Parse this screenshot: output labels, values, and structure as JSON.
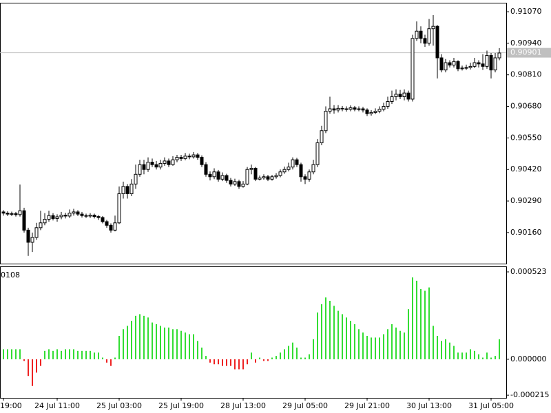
{
  "chart_data": [
    {
      "type": "candlestick",
      "color": "#000000",
      "up_fill": "#ffffff",
      "down_fill": "#000000",
      "ylim": [
        0.90032,
        0.91107
      ],
      "yticks": [
        {
          "value": 0.9107,
          "label": "0.91070"
        },
        {
          "value": 0.9094,
          "label": "0.90940"
        },
        {
          "value": 0.9081,
          "label": "0.90810"
        },
        {
          "value": 0.9068,
          "label": "0.90680"
        },
        {
          "value": 0.9055,
          "label": "0.90550"
        },
        {
          "value": 0.9042,
          "label": "0.90420"
        },
        {
          "value": 0.9029,
          "label": "0.90290"
        },
        {
          "value": 0.9016,
          "label": "0.90160"
        }
      ],
      "current_price": {
        "value": 0.90901,
        "label": "0.90901",
        "color": "#c0c0c0"
      },
      "open": [
        0.90245,
        0.9024,
        0.90236,
        0.90238,
        0.90234,
        0.9025,
        0.9017,
        0.9012,
        0.9014,
        0.9018,
        0.902,
        0.90215,
        0.9023,
        0.90218,
        0.90225,
        0.90232,
        0.90228,
        0.9024,
        0.90245,
        0.90236,
        0.9023,
        0.90228,
        0.90232,
        0.90226,
        0.90222,
        0.90205,
        0.9019,
        0.9017,
        0.902,
        0.9032,
        0.9035,
        0.9032,
        0.9036,
        0.904,
        0.9044,
        0.9042,
        0.9045,
        0.9044,
        0.9043,
        0.90445,
        0.90455,
        0.9044,
        0.9046,
        0.9047,
        0.90465,
        0.90475,
        0.90472,
        0.9048,
        0.9047,
        0.9044,
        0.904,
        0.9039,
        0.9041,
        0.9038,
        0.90395,
        0.90375,
        0.9036,
        0.9037,
        0.9035,
        0.9036,
        0.9042,
        0.90425,
        0.9038,
        0.90385,
        0.9039,
        0.9038,
        0.9039,
        0.90395,
        0.9041,
        0.9042,
        0.9043,
        0.9046,
        0.9044,
        0.9039,
        0.9038,
        0.9041,
        0.9044,
        0.9053,
        0.9058,
        0.9066,
        0.9067,
        0.90665,
        0.90672,
        0.9067,
        0.90668,
        0.90674,
        0.90668,
        0.9067,
        0.90665,
        0.9065,
        0.90655,
        0.9066,
        0.90668,
        0.9068,
        0.907,
        0.9072,
        0.9073,
        0.9072,
        0.90735,
        0.9071,
        0.9096,
        0.9099,
        0.9096,
        0.9094,
        0.91,
        0.9101,
        0.9088,
        0.9083,
        0.9086,
        0.9085,
        0.90865,
        0.90835,
        0.90838,
        0.9084,
        0.90845,
        0.9086,
        0.90855,
        0.90845,
        0.9089,
        0.9083,
        0.9088
      ],
      "high": [
        0.90252,
        0.90248,
        0.90246,
        0.90245,
        0.90358,
        0.90262,
        0.9018,
        0.9016,
        0.902,
        0.9025,
        0.9024,
        0.9025,
        0.9024,
        0.90235,
        0.90245,
        0.90242,
        0.90255,
        0.90258,
        0.90252,
        0.90245,
        0.90238,
        0.9024,
        0.90238,
        0.90232,
        0.90228,
        0.90212,
        0.90198,
        0.9023,
        0.9035,
        0.9037,
        0.9036,
        0.9038,
        0.9044,
        0.9046,
        0.9046,
        0.9047,
        0.90465,
        0.90455,
        0.9046,
        0.9047,
        0.90465,
        0.90475,
        0.9048,
        0.9048,
        0.90488,
        0.90485,
        0.90492,
        0.90488,
        0.90478,
        0.9045,
        0.90412,
        0.90425,
        0.90418,
        0.90408,
        0.90402,
        0.90385,
        0.90382,
        0.90378,
        0.90372,
        0.9043,
        0.9044,
        0.9043,
        0.90395,
        0.904,
        0.90398,
        0.90398,
        0.90405,
        0.9042,
        0.90432,
        0.90448,
        0.9047,
        0.90468,
        0.90448,
        0.904,
        0.9042,
        0.9046,
        0.90545,
        0.906,
        0.9068,
        0.9072,
        0.90685,
        0.90685,
        0.90682,
        0.9068,
        0.90684,
        0.90682,
        0.9068,
        0.90678,
        0.90672,
        0.90665,
        0.90672,
        0.9068,
        0.90695,
        0.9072,
        0.90745,
        0.9075,
        0.90748,
        0.9075,
        0.90745,
        0.90975,
        0.9103,
        0.9101,
        0.90975,
        0.9104,
        0.91056,
        0.91015,
        0.90895,
        0.90875,
        0.9087,
        0.9088,
        0.9087,
        0.90848,
        0.90852,
        0.9086,
        0.9088,
        0.9087,
        0.90895,
        0.9091,
        0.909,
        0.909,
        0.9092
      ],
      "low": [
        0.9023,
        0.90228,
        0.90228,
        0.90226,
        0.90226,
        0.9016,
        0.90064,
        0.9008,
        0.9013,
        0.9017,
        0.9019,
        0.90205,
        0.9021,
        0.90205,
        0.90215,
        0.90218,
        0.9022,
        0.9023,
        0.90228,
        0.90222,
        0.9022,
        0.9022,
        0.90218,
        0.90212,
        0.90198,
        0.9018,
        0.9016,
        0.90165,
        0.90195,
        0.903,
        0.903,
        0.9031,
        0.9034,
        0.9039,
        0.904,
        0.9041,
        0.9043,
        0.9042,
        0.9042,
        0.90435,
        0.9043,
        0.90435,
        0.9045,
        0.90455,
        0.90458,
        0.90462,
        0.90465,
        0.9046,
        0.9043,
        0.9039,
        0.90375,
        0.9038,
        0.9037,
        0.90372,
        0.90365,
        0.9035,
        0.90352,
        0.9034,
        0.90345,
        0.90355,
        0.904,
        0.90372,
        0.90375,
        0.90378,
        0.90372,
        0.90374,
        0.90382,
        0.90388,
        0.90402,
        0.90412,
        0.9042,
        0.9043,
        0.9037,
        0.9036,
        0.9037,
        0.904,
        0.9043,
        0.9052,
        0.9057,
        0.9065,
        0.9065,
        0.90655,
        0.9066,
        0.90658,
        0.9066,
        0.9066,
        0.9066,
        0.90655,
        0.9064,
        0.90642,
        0.90648,
        0.90652,
        0.9066,
        0.9067,
        0.9069,
        0.90705,
        0.9071,
        0.90705,
        0.907,
        0.907,
        0.9095,
        0.9094,
        0.90925,
        0.9093,
        0.9093,
        0.90795,
        0.9082,
        0.9082,
        0.9084,
        0.9084,
        0.90825,
        0.90828,
        0.9083,
        0.90832,
        0.90838,
        0.9084,
        0.9083,
        0.90835,
        0.90795,
        0.9082,
        0.9087
      ],
      "close": [
        0.9024,
        0.90236,
        0.90238,
        0.90234,
        0.9025,
        0.9017,
        0.9012,
        0.9014,
        0.9018,
        0.902,
        0.90215,
        0.9023,
        0.90218,
        0.90225,
        0.90232,
        0.90228,
        0.9024,
        0.90245,
        0.90236,
        0.9023,
        0.90228,
        0.90232,
        0.90226,
        0.90222,
        0.90205,
        0.9019,
        0.9017,
        0.902,
        0.9032,
        0.9035,
        0.9032,
        0.9036,
        0.904,
        0.9044,
        0.9042,
        0.9045,
        0.9044,
        0.9043,
        0.90445,
        0.90455,
        0.9044,
        0.9046,
        0.9047,
        0.90465,
        0.90475,
        0.90472,
        0.9048,
        0.9047,
        0.9044,
        0.904,
        0.9039,
        0.9041,
        0.9038,
        0.90395,
        0.90375,
        0.9036,
        0.9037,
        0.9035,
        0.9036,
        0.9042,
        0.90425,
        0.9038,
        0.90385,
        0.9039,
        0.9038,
        0.9039,
        0.90395,
        0.9041,
        0.9042,
        0.9043,
        0.9046,
        0.9044,
        0.9039,
        0.9038,
        0.9041,
        0.9044,
        0.9053,
        0.9058,
        0.9066,
        0.9067,
        0.90665,
        0.90672,
        0.9067,
        0.90668,
        0.90674,
        0.90668,
        0.9067,
        0.90665,
        0.9065,
        0.90655,
        0.9066,
        0.90668,
        0.9068,
        0.907,
        0.9072,
        0.9073,
        0.9072,
        0.90735,
        0.9071,
        0.9096,
        0.9099,
        0.9096,
        0.9094,
        0.91,
        0.9101,
        0.9088,
        0.9083,
        0.9086,
        0.9085,
        0.90865,
        0.90835,
        0.90838,
        0.9084,
        0.90845,
        0.9086,
        0.90855,
        0.90845,
        0.9089,
        0.9083,
        0.9088,
        0.909
      ]
    },
    {
      "type": "bar",
      "title": "0108",
      "up_color": "#33dd33",
      "down_color": "#ee2222",
      "ylim": [
        -0.000231,
        0.000556
      ],
      "yticks": [
        {
          "value": 0.000523,
          "label": "0.000523"
        },
        {
          "value": 0,
          "label": "0.000000"
        },
        {
          "value": -0.000215,
          "label": "-0.000215"
        }
      ],
      "xticks": [
        {
          "value": 0,
          "label": "19:00"
        },
        {
          "value": 13,
          "label": "24 Jul 11:00"
        },
        {
          "value": 28,
          "label": "25 Jul 03:00"
        },
        {
          "value": 43,
          "label": "25 Jul 19:00"
        },
        {
          "value": 58,
          "label": "28 Jul 13:00"
        },
        {
          "value": 73,
          "label": "29 Jul 05:00"
        },
        {
          "value": 88,
          "label": "29 Jul 21:00"
        },
        {
          "value": 103,
          "label": "30 Jul 13:00"
        },
        {
          "value": 118,
          "label": "31 Jul 05:00"
        }
      ],
      "values": [
        6e-05,
        6e-05,
        6e-05,
        6e-05,
        6e-05,
        -1e-05,
        -0.0001,
        -0.00016,
        -8e-05,
        -4e-05,
        5e-05,
        6e-05,
        5e-05,
        6e-05,
        5e-05,
        6e-05,
        6e-05,
        6e-05,
        5e-05,
        5e-05,
        5e-05,
        5e-05,
        4e-05,
        4e-05,
        1e-05,
        -2e-05,
        -4e-05,
        1e-05,
        0.00014,
        0.00018,
        0.0002,
        0.00023,
        0.00026,
        0.00027,
        0.00026,
        0.00025,
        0.00022,
        0.00021,
        0.0002,
        0.00019,
        0.00019,
        0.00018,
        0.00018,
        0.00017,
        0.00016,
        0.00015,
        0.00015,
        0.00011,
        7e-05,
        2e-05,
        -2e-05,
        -3e-05,
        -3e-05,
        -4e-05,
        -4e-05,
        -4e-05,
        -6e-05,
        -6e-05,
        -6e-05,
        -3e-05,
        4e-05,
        -2e-05,
        1e-05,
        -1e-05,
        -1e-05,
        1e-05,
        2e-05,
        4e-05,
        6e-05,
        8e-05,
        0.0001,
        7e-05,
        1e-05,
        1e-05,
        3e-05,
        0.00012,
        0.00028,
        0.00033,
        0.00037,
        0.00035,
        0.00032,
        0.00029,
        0.00027,
        0.00025,
        0.00023,
        0.00021,
        0.00018,
        0.00016,
        0.00014,
        0.00013,
        0.00013,
        0.00013,
        0.00015,
        0.00018,
        0.00021,
        0.00019,
        0.00017,
        0.00016,
        0.0003,
        0.00049,
        0.00047,
        0.00042,
        0.00041,
        0.00043,
        0.0002,
        0.00014,
        0.00011,
        0.00012,
        0.0001,
        8e-05,
        4e-05,
        4e-05,
        4e-05,
        6e-05,
        5e-05,
        3e-05,
        1e-05,
        4e-05,
        1e-05,
        2e-05,
        0.00012
      ]
    }
  ]
}
